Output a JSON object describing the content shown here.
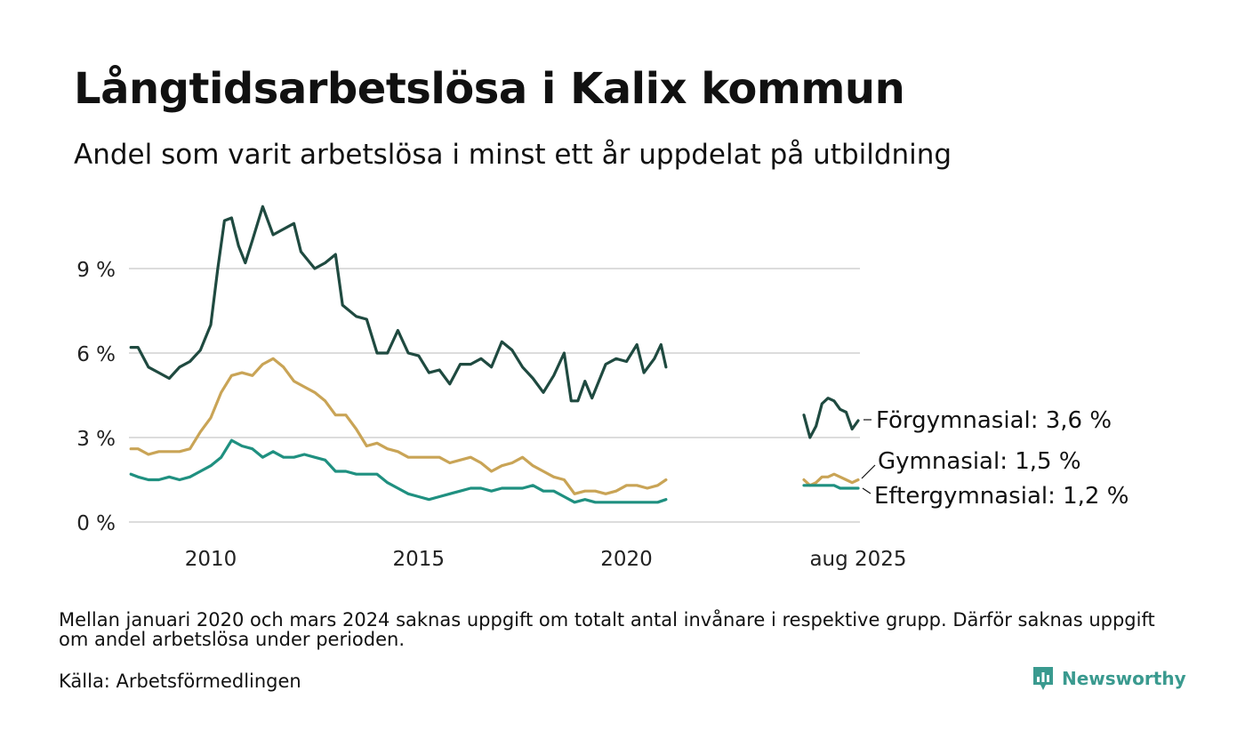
{
  "title": "Långtidsarbetslösa i Kalix kommun",
  "subtitle": "Andel som varit arbetslösa i minst ett år uppdelat på utbildning",
  "footnote": "Mellan januari 2020 och mars 2024 saknas uppgift om totalt antal invånare i respektive grupp. Därför saknas uppgift om andel arbetslösa under perioden.",
  "source": "Källa: Arbetsförmedlingen",
  "brand": "Newsworthy",
  "chart_data": {
    "type": "line",
    "xlabel": "",
    "ylabel": "",
    "ylim": [
      0,
      11.5
    ],
    "y_ticks": [
      0,
      3,
      6,
      9
    ],
    "y_tick_labels": [
      "0 %",
      "3 %",
      "6 %",
      "9 %"
    ],
    "x_ticks": [
      2010,
      2015,
      2020,
      2025.6
    ],
    "x_tick_labels": [
      "2010",
      "2015",
      "2020",
      "aug 2025"
    ],
    "gap": [
      "jan 2020",
      "mar 2024"
    ],
    "grid": true,
    "legend": "direct labels at line ends",
    "series": [
      {
        "name": "Förgymnasial",
        "end_label": "Förgymnasial: 3,6 %",
        "color": "#1f4a40",
        "segments": [
          [
            [
              2008.08,
              6.2
            ],
            [
              2008.25,
              6.2
            ],
            [
              2008.5,
              5.5
            ],
            [
              2008.75,
              5.3
            ],
            [
              2009.0,
              5.1
            ],
            [
              2009.25,
              5.5
            ],
            [
              2009.5,
              5.7
            ],
            [
              2009.75,
              6.1
            ],
            [
              2010.0,
              7.0
            ],
            [
              2010.17,
              9.0
            ],
            [
              2010.33,
              10.7
            ],
            [
              2010.5,
              10.8
            ],
            [
              2010.67,
              9.8
            ],
            [
              2010.83,
              9.2
            ],
            [
              2011.0,
              10.0
            ],
            [
              2011.25,
              11.2
            ],
            [
              2011.5,
              10.2
            ],
            [
              2011.75,
              10.4
            ],
            [
              2012.0,
              10.6
            ],
            [
              2012.17,
              9.6
            ],
            [
              2012.5,
              9.0
            ],
            [
              2012.75,
              9.2
            ],
            [
              2013.0,
              9.5
            ],
            [
              2013.17,
              7.7
            ],
            [
              2013.5,
              7.3
            ],
            [
              2013.75,
              7.2
            ],
            [
              2014.0,
              6.0
            ],
            [
              2014.25,
              6.0
            ],
            [
              2014.5,
              6.8
            ],
            [
              2014.75,
              6.0
            ],
            [
              2015.0,
              5.9
            ],
            [
              2015.25,
              5.3
            ],
            [
              2015.5,
              5.4
            ],
            [
              2015.75,
              4.9
            ],
            [
              2016.0,
              5.6
            ],
            [
              2016.25,
              5.6
            ],
            [
              2016.5,
              5.8
            ],
            [
              2016.75,
              5.5
            ],
            [
              2017.0,
              6.4
            ],
            [
              2017.25,
              6.1
            ],
            [
              2017.5,
              5.5
            ],
            [
              2017.75,
              5.1
            ],
            [
              2018.0,
              4.6
            ],
            [
              2018.25,
              5.2
            ],
            [
              2018.5,
              6.0
            ],
            [
              2018.67,
              4.3
            ],
            [
              2018.83,
              4.3
            ],
            [
              2019.0,
              5.0
            ],
            [
              2019.17,
              4.4
            ],
            [
              2019.5,
              5.6
            ],
            [
              2019.75,
              5.8
            ],
            [
              2020.0,
              5.7
            ],
            [
              2020.25,
              6.3
            ],
            [
              2020.42,
              5.3
            ],
            [
              2020.67,
              5.8
            ],
            [
              2020.83,
              6.3
            ],
            [
              2020.95,
              5.5
            ]
          ],
          [
            [
              2024.25,
              3.8
            ],
            [
              2024.4,
              3.0
            ],
            [
              2024.55,
              3.4
            ],
            [
              2024.7,
              4.2
            ],
            [
              2024.85,
              4.4
            ],
            [
              2025.0,
              4.3
            ],
            [
              2025.15,
              4.0
            ],
            [
              2025.3,
              3.9
            ],
            [
              2025.45,
              3.3
            ],
            [
              2025.6,
              3.6
            ]
          ]
        ]
      },
      {
        "name": "Gymnasial",
        "end_label": "Gymnasial: 1,5 %",
        "color": "#c9a456",
        "segments": [
          [
            [
              2008.08,
              2.6
            ],
            [
              2008.25,
              2.6
            ],
            [
              2008.5,
              2.4
            ],
            [
              2008.75,
              2.5
            ],
            [
              2009.0,
              2.5
            ],
            [
              2009.25,
              2.5
            ],
            [
              2009.5,
              2.6
            ],
            [
              2009.75,
              3.2
            ],
            [
              2010.0,
              3.7
            ],
            [
              2010.25,
              4.6
            ],
            [
              2010.5,
              5.2
            ],
            [
              2010.75,
              5.3
            ],
            [
              2011.0,
              5.2
            ],
            [
              2011.25,
              5.6
            ],
            [
              2011.5,
              5.8
            ],
            [
              2011.75,
              5.5
            ],
            [
              2012.0,
              5.0
            ],
            [
              2012.25,
              4.8
            ],
            [
              2012.5,
              4.6
            ],
            [
              2012.75,
              4.3
            ],
            [
              2013.0,
              3.8
            ],
            [
              2013.25,
              3.8
            ],
            [
              2013.5,
              3.3
            ],
            [
              2013.75,
              2.7
            ],
            [
              2014.0,
              2.8
            ],
            [
              2014.25,
              2.6
            ],
            [
              2014.5,
              2.5
            ],
            [
              2014.75,
              2.3
            ],
            [
              2015.0,
              2.3
            ],
            [
              2015.25,
              2.3
            ],
            [
              2015.5,
              2.3
            ],
            [
              2015.75,
              2.1
            ],
            [
              2016.0,
              2.2
            ],
            [
              2016.25,
              2.3
            ],
            [
              2016.5,
              2.1
            ],
            [
              2016.75,
              1.8
            ],
            [
              2017.0,
              2.0
            ],
            [
              2017.25,
              2.1
            ],
            [
              2017.5,
              2.3
            ],
            [
              2017.75,
              2.0
            ],
            [
              2018.0,
              1.8
            ],
            [
              2018.25,
              1.6
            ],
            [
              2018.5,
              1.5
            ],
            [
              2018.75,
              1.0
            ],
            [
              2019.0,
              1.1
            ],
            [
              2019.25,
              1.1
            ],
            [
              2019.5,
              1.0
            ],
            [
              2019.75,
              1.1
            ],
            [
              2020.0,
              1.3
            ],
            [
              2020.25,
              1.3
            ],
            [
              2020.5,
              1.2
            ],
            [
              2020.75,
              1.3
            ],
            [
              2020.95,
              1.5
            ]
          ],
          [
            [
              2024.25,
              1.5
            ],
            [
              2024.4,
              1.3
            ],
            [
              2024.55,
              1.4
            ],
            [
              2024.7,
              1.6
            ],
            [
              2024.85,
              1.6
            ],
            [
              2025.0,
              1.7
            ],
            [
              2025.15,
              1.6
            ],
            [
              2025.3,
              1.5
            ],
            [
              2025.45,
              1.4
            ],
            [
              2025.6,
              1.5
            ]
          ]
        ]
      },
      {
        "name": "Eftergymnasial",
        "end_label": "Eftergymnasial: 1,2 %",
        "color": "#1f9080",
        "segments": [
          [
            [
              2008.08,
              1.7
            ],
            [
              2008.25,
              1.6
            ],
            [
              2008.5,
              1.5
            ],
            [
              2008.75,
              1.5
            ],
            [
              2009.0,
              1.6
            ],
            [
              2009.25,
              1.5
            ],
            [
              2009.5,
              1.6
            ],
            [
              2009.75,
              1.8
            ],
            [
              2010.0,
              2.0
            ],
            [
              2010.25,
              2.3
            ],
            [
              2010.5,
              2.9
            ],
            [
              2010.75,
              2.7
            ],
            [
              2011.0,
              2.6
            ],
            [
              2011.25,
              2.3
            ],
            [
              2011.5,
              2.5
            ],
            [
              2011.75,
              2.3
            ],
            [
              2012.0,
              2.3
            ],
            [
              2012.25,
              2.4
            ],
            [
              2012.5,
              2.3
            ],
            [
              2012.75,
              2.2
            ],
            [
              2013.0,
              1.8
            ],
            [
              2013.25,
              1.8
            ],
            [
              2013.5,
              1.7
            ],
            [
              2013.75,
              1.7
            ],
            [
              2014.0,
              1.7
            ],
            [
              2014.25,
              1.4
            ],
            [
              2014.5,
              1.2
            ],
            [
              2014.75,
              1.0
            ],
            [
              2015.0,
              0.9
            ],
            [
              2015.25,
              0.8
            ],
            [
              2015.5,
              0.9
            ],
            [
              2015.75,
              1.0
            ],
            [
              2016.0,
              1.1
            ],
            [
              2016.25,
              1.2
            ],
            [
              2016.5,
              1.2
            ],
            [
              2016.75,
              1.1
            ],
            [
              2017.0,
              1.2
            ],
            [
              2017.25,
              1.2
            ],
            [
              2017.5,
              1.2
            ],
            [
              2017.75,
              1.3
            ],
            [
              2018.0,
              1.1
            ],
            [
              2018.25,
              1.1
            ],
            [
              2018.5,
              0.9
            ],
            [
              2018.75,
              0.7
            ],
            [
              2019.0,
              0.8
            ],
            [
              2019.25,
              0.7
            ],
            [
              2019.5,
              0.7
            ],
            [
              2019.75,
              0.7
            ],
            [
              2020.0,
              0.7
            ],
            [
              2020.25,
              0.7
            ],
            [
              2020.5,
              0.7
            ],
            [
              2020.75,
              0.7
            ],
            [
              2020.95,
              0.8
            ]
          ],
          [
            [
              2024.25,
              1.3
            ],
            [
              2024.4,
              1.3
            ],
            [
              2024.55,
              1.3
            ],
            [
              2024.7,
              1.3
            ],
            [
              2024.85,
              1.3
            ],
            [
              2025.0,
              1.3
            ],
            [
              2025.15,
              1.2
            ],
            [
              2025.3,
              1.2
            ],
            [
              2025.45,
              1.2
            ],
            [
              2025.6,
              1.2
            ]
          ]
        ]
      }
    ]
  }
}
